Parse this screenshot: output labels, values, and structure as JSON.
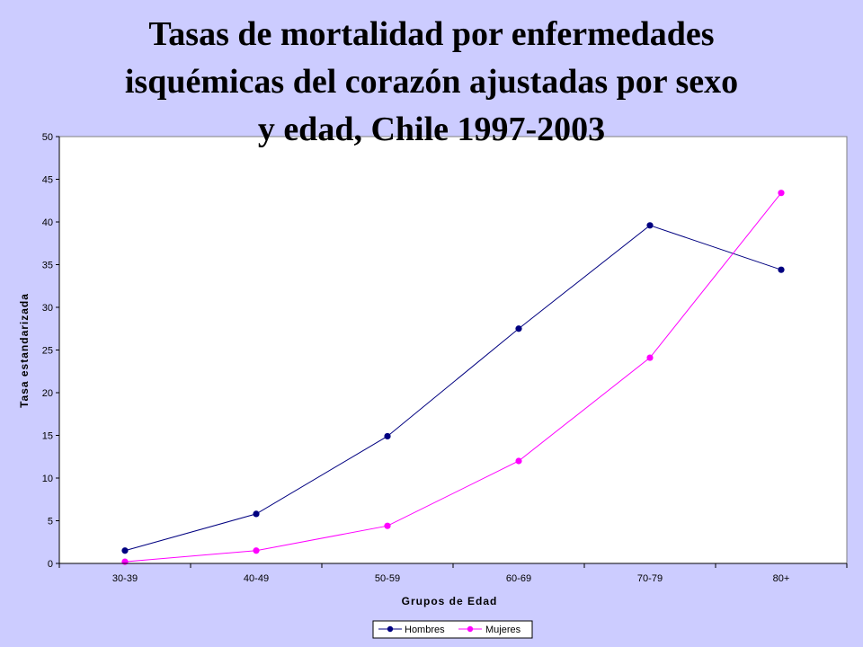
{
  "chart_data": {
    "type": "line",
    "title_lines": [
      "Tasas de mortalidad por enfermedades",
      "isquémicas del corazón ajustadas por sexo",
      "y edad, Chile 1997-2003"
    ],
    "xlabel": "Grupos de Edad",
    "ylabel": "Tasa estandarizada",
    "categories": [
      "30-39",
      "40-49",
      "50-59",
      "60-69",
      "70-79",
      "80+"
    ],
    "ylim": [
      0,
      50
    ],
    "yticks": [
      0,
      5,
      10,
      15,
      20,
      25,
      30,
      35,
      40,
      45,
      50
    ],
    "grid": false,
    "legend_position": "bottom-center",
    "series": [
      {
        "name": "Hombres",
        "color": "#000080",
        "values": [
          1.5,
          5.8,
          14.9,
          27.5,
          39.6,
          34.4
        ]
      },
      {
        "name": "Mujeres",
        "color": "#ff00ff",
        "values": [
          0.2,
          1.5,
          4.4,
          12.0,
          24.1,
          43.4
        ]
      }
    ]
  }
}
